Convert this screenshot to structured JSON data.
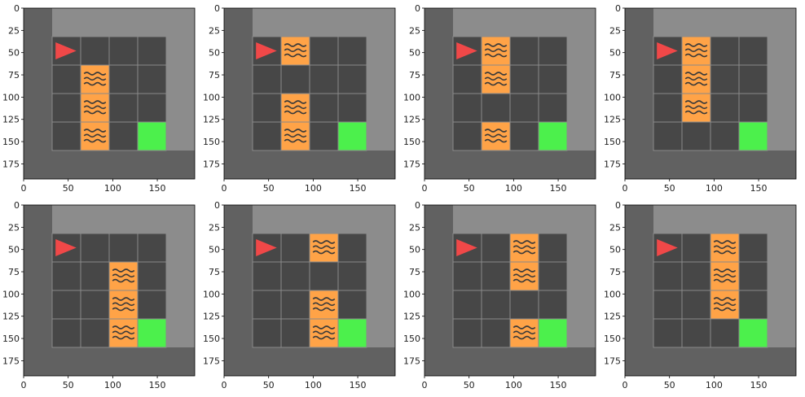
{
  "figure": {
    "x_ticks": [
      "0",
      "50",
      "100",
      "150"
    ],
    "y_ticks": [
      "0",
      "25",
      "50",
      "75",
      "100",
      "125",
      "150",
      "175"
    ]
  },
  "legend_semantics": {
    "agent": "red-triangle-icon",
    "goal": "green-goal-tile",
    "hazard": "lava-wave-icon"
  },
  "colors": {
    "outer_dark": "#616161",
    "outer_light": "#8c8c8c",
    "floor": "#474747",
    "grid_line": "#8a8a8a",
    "lava": "#ffa347",
    "wave": "#3a3a3a",
    "goal": "#4cf04c",
    "agent": "#f04848"
  },
  "panels": [
    {
      "name": "panel-1",
      "cols": 4,
      "rows": 4,
      "agent": [
        0,
        0
      ],
      "goal": [
        3,
        3
      ],
      "lava": [
        [
          1,
          1
        ],
        [
          1,
          2
        ],
        [
          1,
          3
        ]
      ]
    },
    {
      "name": "panel-2",
      "cols": 4,
      "rows": 4,
      "agent": [
        0,
        0
      ],
      "goal": [
        3,
        3
      ],
      "lava": [
        [
          1,
          0
        ],
        [
          1,
          2
        ],
        [
          1,
          3
        ]
      ]
    },
    {
      "name": "panel-3",
      "cols": 4,
      "rows": 4,
      "agent": [
        0,
        0
      ],
      "goal": [
        3,
        3
      ],
      "lava": [
        [
          1,
          0
        ],
        [
          1,
          1
        ],
        [
          1,
          3
        ]
      ]
    },
    {
      "name": "panel-4",
      "cols": 4,
      "rows": 4,
      "agent": [
        0,
        0
      ],
      "goal": [
        3,
        3
      ],
      "lava": [
        [
          1,
          0
        ],
        [
          1,
          1
        ],
        [
          1,
          2
        ]
      ]
    },
    {
      "name": "panel-5",
      "cols": 4,
      "rows": 4,
      "agent": [
        0,
        0
      ],
      "goal": [
        3,
        3
      ],
      "lava": [
        [
          2,
          1
        ],
        [
          2,
          2
        ],
        [
          2,
          3
        ]
      ]
    },
    {
      "name": "panel-6",
      "cols": 4,
      "rows": 4,
      "agent": [
        0,
        0
      ],
      "goal": [
        3,
        3
      ],
      "lava": [
        [
          2,
          0
        ],
        [
          2,
          2
        ],
        [
          2,
          3
        ]
      ]
    },
    {
      "name": "panel-7",
      "cols": 4,
      "rows": 4,
      "agent": [
        0,
        0
      ],
      "goal": [
        3,
        3
      ],
      "lava": [
        [
          2,
          0
        ],
        [
          2,
          1
        ],
        [
          2,
          3
        ]
      ]
    },
    {
      "name": "panel-8",
      "cols": 4,
      "rows": 4,
      "agent": [
        0,
        0
      ],
      "goal": [
        3,
        3
      ],
      "lava": [
        [
          2,
          0
        ],
        [
          2,
          1
        ],
        [
          2,
          2
        ]
      ]
    }
  ]
}
